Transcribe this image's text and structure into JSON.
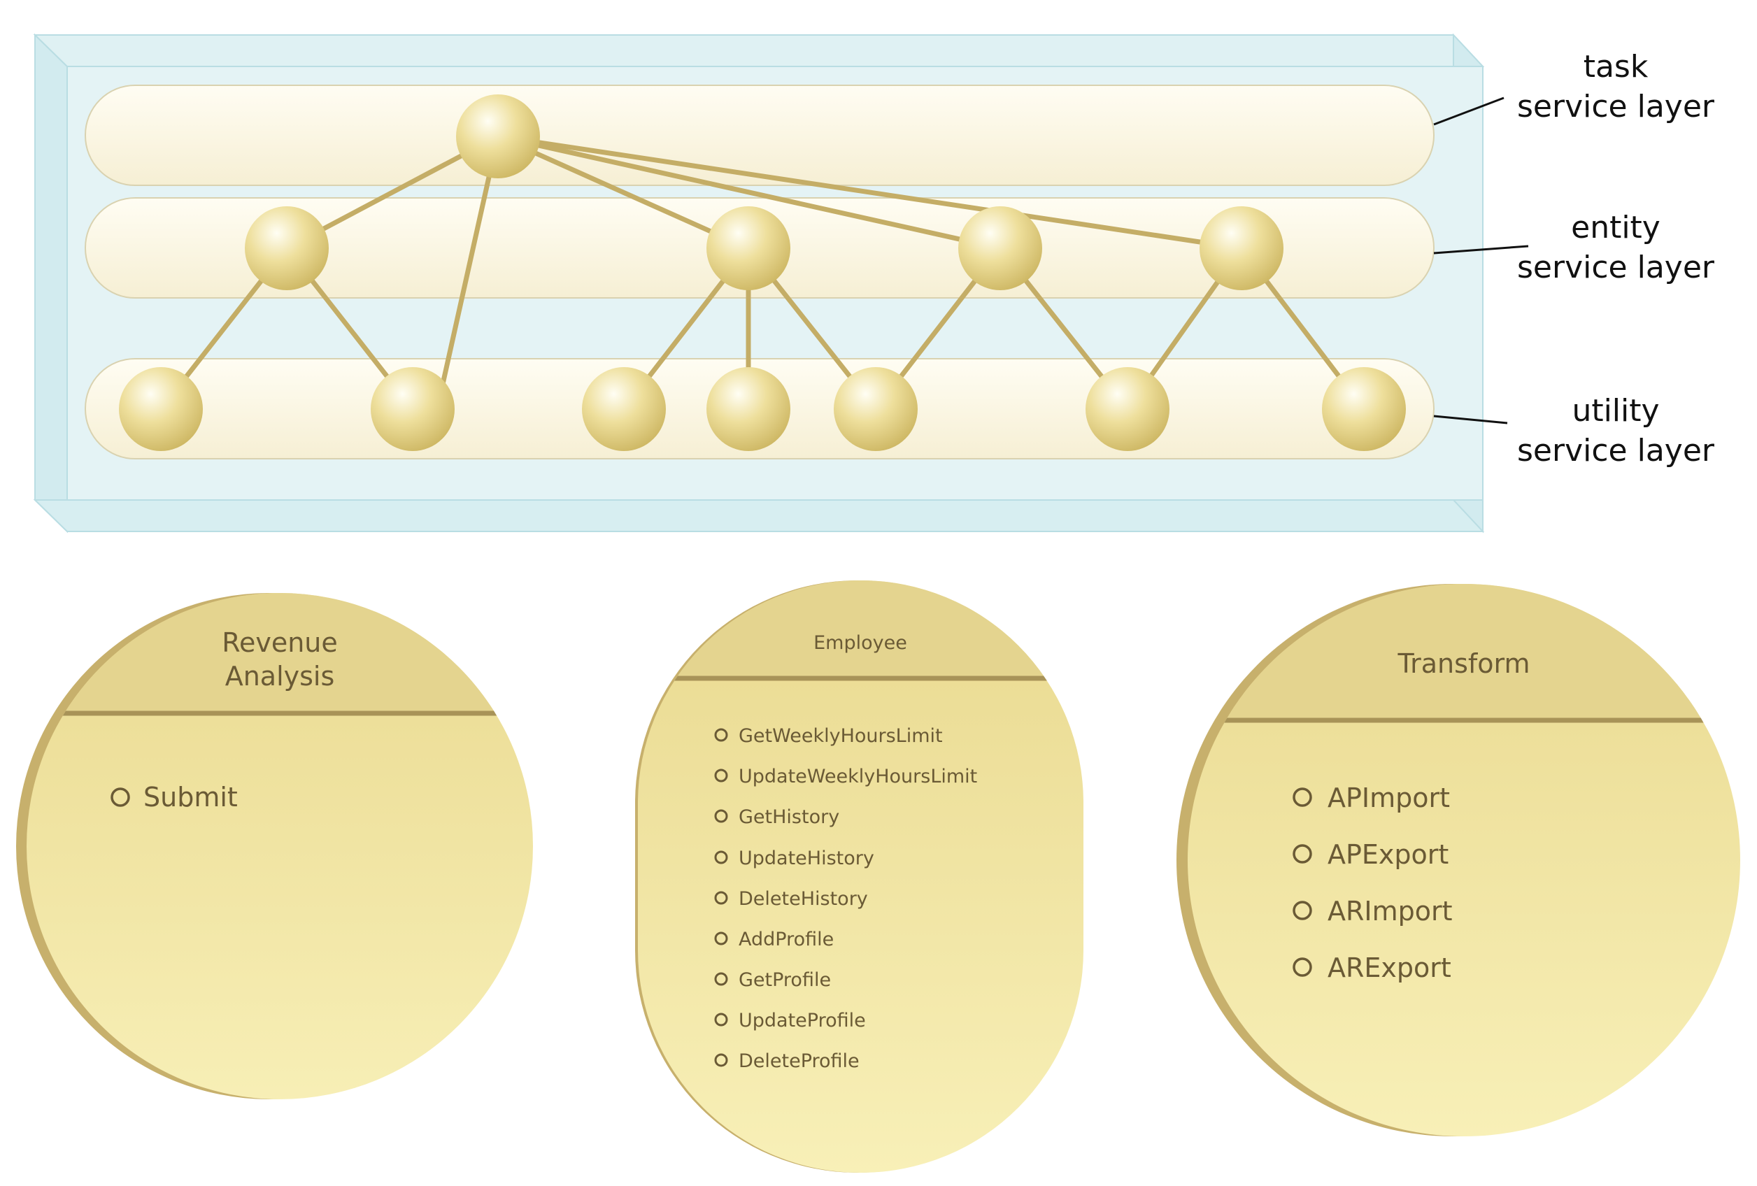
{
  "layers": {
    "task": {
      "line1": "task",
      "line2": "service layer"
    },
    "entity": {
      "line1": "entity",
      "line2": "service layer"
    },
    "utility": {
      "line1": "utility",
      "line2": "service layer"
    }
  },
  "services": {
    "revenue_analysis": {
      "title_line1": "Revenue",
      "title_line2": "Analysis",
      "operations": [
        "Submit"
      ]
    },
    "employee": {
      "title": "Employee",
      "operations": [
        "GetWeeklyHoursLimit",
        "UpdateWeeklyHoursLimit",
        "GetHistory",
        "UpdateHistory",
        "DeleteHistory",
        "AddProfile",
        "GetProfile",
        "UpdateProfile",
        "DeleteProfile"
      ]
    },
    "transform": {
      "title": "Transform",
      "operations": [
        "APImport",
        "APExport",
        "ARImport",
        "ARExport"
      ]
    }
  },
  "colors": {
    "connector": "#c4ad66",
    "node": "#e6d68c",
    "service_fill": "#f3e7a8",
    "service_header": "#e4d48f",
    "service_rim": "#c7b06c",
    "service_text": "#6a5a35",
    "box_fill": "#e4f3f5"
  }
}
